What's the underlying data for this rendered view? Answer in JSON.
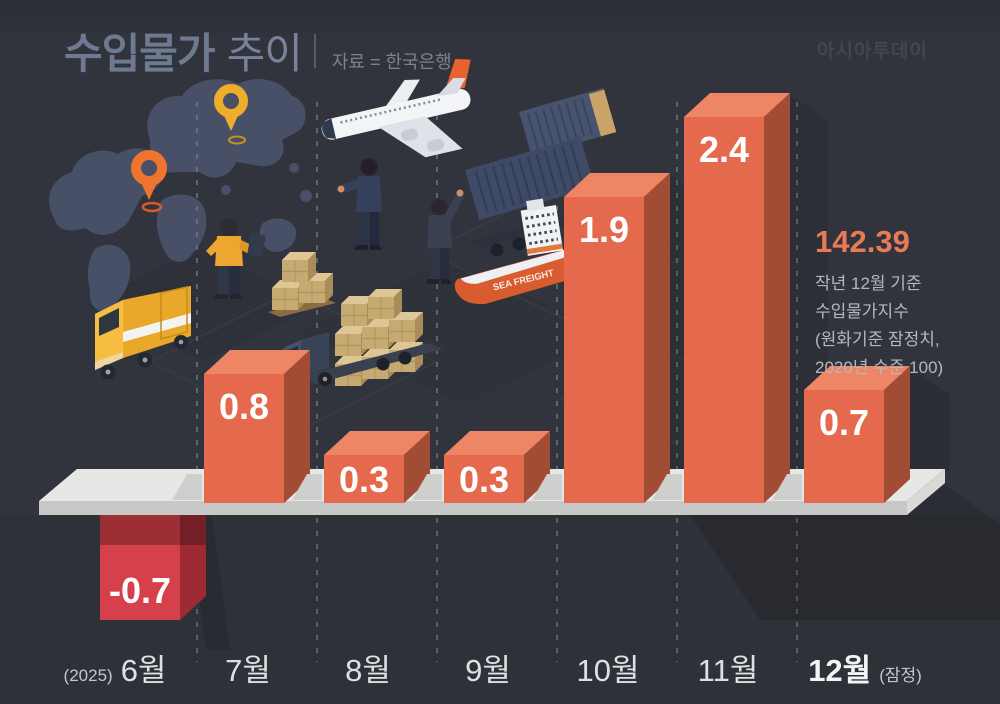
{
  "header": {
    "title_strong": "수입물가",
    "title_light": "추이",
    "source": "자료 = 한국은행",
    "watermark": "아시아투데이"
  },
  "annotation": {
    "value": "142.39",
    "lines": [
      "작년 12월 기준",
      "수입물가지수",
      "(원화기준 잠정치,",
      "2020년 수준 100)"
    ]
  },
  "chart_data": {
    "type": "bar",
    "title": "수입물가 추이",
    "source": "자료 = 한국은행",
    "categories": [
      "6월",
      "7월",
      "8월",
      "9월",
      "10월",
      "11월",
      "12월"
    ],
    "values": [
      -0.7,
      0.8,
      0.3,
      0.3,
      1.9,
      2.4,
      0.7
    ],
    "value_labels": [
      "-0.7",
      "0.8",
      "0.3",
      "0.3",
      "1.9",
      "2.4",
      "0.7"
    ],
    "first_category_prefix": "(2025)",
    "last_category_suffix": "(잠정)",
    "baseline": 0,
    "ylim": [
      -0.7,
      2.4
    ],
    "grid": "dashed-column-separators",
    "legend": "none",
    "bar_color_positive": "#e56a4d",
    "bar_top_color": "#ee8565",
    "bar_side_color": "#a24c35",
    "bar_color_negative": "#d6404a",
    "neg_side_color": "#9e2b34"
  },
  "illustration": {
    "ship_label": "SEA FREIGHT",
    "elements": [
      "world-map",
      "location-pin-orange",
      "location-pin-yellow",
      "airplane",
      "person-with-tablet",
      "person-in-suit",
      "person-waving",
      "delivery-truck",
      "pallet-boxes",
      "cargo-truck-with-boxes",
      "shipping-containers",
      "cargo-ship"
    ]
  },
  "colors": {
    "background": "#31343c",
    "accent_orange": "#e56a4d",
    "negative_red": "#d6404a",
    "platform": "#e7e7e5",
    "highlight_value": "#e87a58",
    "title": "#6e7a90",
    "separator": "#7a7e86"
  }
}
